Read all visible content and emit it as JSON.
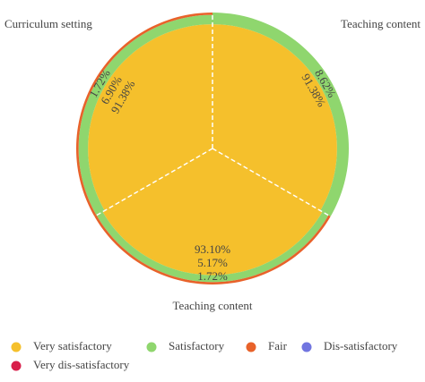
{
  "chart_data": {
    "type": "radial-stacked",
    "categories": [
      "Curriculum setting",
      "Teaching content",
      "Teaching content"
    ],
    "series": [
      {
        "name": "Very satisfactory",
        "color": "#f5c02c",
        "values": [
          91.38,
          91.38,
          93.1
        ],
        "value_labels": [
          "91.38%",
          "91.38%",
          "93.10%"
        ]
      },
      {
        "name": "Satisfactory",
        "color": "#8fd66e",
        "values": [
          6.9,
          8.62,
          5.17
        ],
        "value_labels": [
          "6.90%",
          "8.62%",
          "5.17%"
        ]
      },
      {
        "name": "Fair",
        "color": "#e8622a",
        "values": [
          1.72,
          0,
          1.72
        ],
        "value_labels": [
          "1.72%",
          null,
          "1.72%"
        ]
      },
      {
        "name": "Dis-satisfactory",
        "color": "#7175e0",
        "values": [
          0,
          0,
          0
        ],
        "value_labels": [
          null,
          null,
          null
        ]
      },
      {
        "name": "Very dis-satisfactory",
        "color": "#d81e4a",
        "values": [
          0,
          0,
          0
        ],
        "value_labels": [
          null,
          null,
          null
        ]
      }
    ],
    "rlim": [
      0,
      100
    ]
  }
}
